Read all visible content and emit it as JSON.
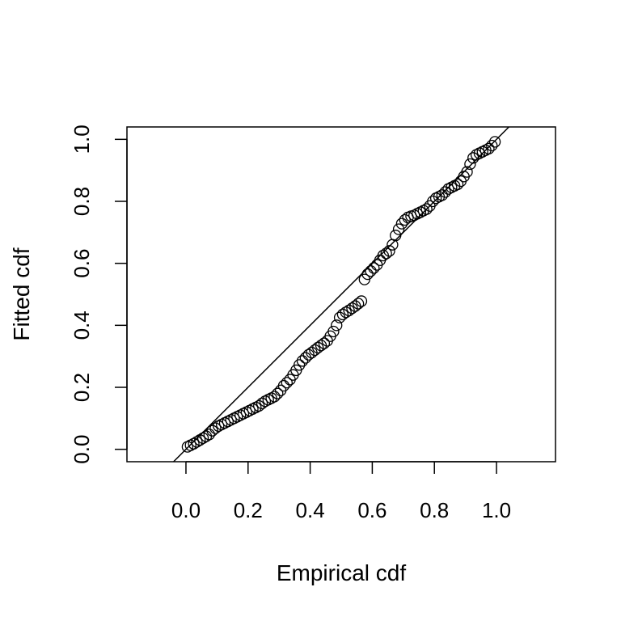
{
  "chart_data": {
    "type": "scatter",
    "title": "",
    "xlabel": "Empirical cdf",
    "ylabel": "Fitted cdf",
    "xlim": [
      -0.19,
      1.19
    ],
    "ylim": [
      -0.04,
      1.04
    ],
    "xticks": [
      "0.0",
      "0.2",
      "0.4",
      "0.6",
      "0.8",
      "1.0"
    ],
    "yticks": [
      "0.0",
      "0.2",
      "0.4",
      "0.6",
      "0.8",
      "1.0"
    ],
    "grid": false,
    "reference_line": {
      "slope": 1,
      "intercept": 0
    },
    "series": [
      {
        "marker": "open-circle",
        "points": [
          [
            0.005,
            0.008
          ],
          [
            0.015,
            0.013
          ],
          [
            0.025,
            0.018
          ],
          [
            0.035,
            0.024
          ],
          [
            0.045,
            0.03
          ],
          [
            0.055,
            0.036
          ],
          [
            0.065,
            0.042
          ],
          [
            0.075,
            0.048
          ],
          [
            0.085,
            0.06
          ],
          [
            0.095,
            0.068
          ],
          [
            0.105,
            0.075
          ],
          [
            0.115,
            0.08
          ],
          [
            0.125,
            0.085
          ],
          [
            0.135,
            0.09
          ],
          [
            0.145,
            0.095
          ],
          [
            0.155,
            0.1
          ],
          [
            0.165,
            0.105
          ],
          [
            0.175,
            0.11
          ],
          [
            0.185,
            0.115
          ],
          [
            0.195,
            0.12
          ],
          [
            0.205,
            0.125
          ],
          [
            0.215,
            0.13
          ],
          [
            0.225,
            0.135
          ],
          [
            0.235,
            0.14
          ],
          [
            0.245,
            0.148
          ],
          [
            0.255,
            0.155
          ],
          [
            0.265,
            0.16
          ],
          [
            0.275,
            0.165
          ],
          [
            0.285,
            0.17
          ],
          [
            0.295,
            0.18
          ],
          [
            0.305,
            0.19
          ],
          [
            0.315,
            0.205
          ],
          [
            0.325,
            0.215
          ],
          [
            0.335,
            0.225
          ],
          [
            0.345,
            0.24
          ],
          [
            0.355,
            0.255
          ],
          [
            0.365,
            0.272
          ],
          [
            0.375,
            0.285
          ],
          [
            0.385,
            0.295
          ],
          [
            0.395,
            0.305
          ],
          [
            0.405,
            0.312
          ],
          [
            0.415,
            0.32
          ],
          [
            0.425,
            0.328
          ],
          [
            0.435,
            0.335
          ],
          [
            0.445,
            0.342
          ],
          [
            0.455,
            0.35
          ],
          [
            0.465,
            0.365
          ],
          [
            0.475,
            0.38
          ],
          [
            0.485,
            0.4
          ],
          [
            0.495,
            0.425
          ],
          [
            0.505,
            0.435
          ],
          [
            0.515,
            0.442
          ],
          [
            0.525,
            0.448
          ],
          [
            0.535,
            0.455
          ],
          [
            0.545,
            0.462
          ],
          [
            0.555,
            0.47
          ],
          [
            0.565,
            0.478
          ],
          [
            0.575,
            0.548
          ],
          [
            0.585,
            0.565
          ],
          [
            0.595,
            0.575
          ],
          [
            0.605,
            0.585
          ],
          [
            0.615,
            0.595
          ],
          [
            0.625,
            0.61
          ],
          [
            0.635,
            0.625
          ],
          [
            0.645,
            0.632
          ],
          [
            0.655,
            0.64
          ],
          [
            0.665,
            0.66
          ],
          [
            0.675,
            0.69
          ],
          [
            0.685,
            0.71
          ],
          [
            0.695,
            0.728
          ],
          [
            0.705,
            0.74
          ],
          [
            0.715,
            0.748
          ],
          [
            0.725,
            0.752
          ],
          [
            0.735,
            0.755
          ],
          [
            0.745,
            0.76
          ],
          [
            0.755,
            0.765
          ],
          [
            0.765,
            0.77
          ],
          [
            0.775,
            0.775
          ],
          [
            0.785,
            0.785
          ],
          [
            0.795,
            0.8
          ],
          [
            0.805,
            0.81
          ],
          [
            0.815,
            0.815
          ],
          [
            0.825,
            0.82
          ],
          [
            0.835,
            0.83
          ],
          [
            0.845,
            0.84
          ],
          [
            0.855,
            0.845
          ],
          [
            0.865,
            0.85
          ],
          [
            0.875,
            0.855
          ],
          [
            0.885,
            0.865
          ],
          [
            0.895,
            0.88
          ],
          [
            0.905,
            0.895
          ],
          [
            0.915,
            0.92
          ],
          [
            0.925,
            0.94
          ],
          [
            0.935,
            0.95
          ],
          [
            0.945,
            0.955
          ],
          [
            0.955,
            0.96
          ],
          [
            0.965,
            0.965
          ],
          [
            0.975,
            0.97
          ],
          [
            0.985,
            0.98
          ],
          [
            0.995,
            0.992
          ]
        ]
      }
    ]
  }
}
